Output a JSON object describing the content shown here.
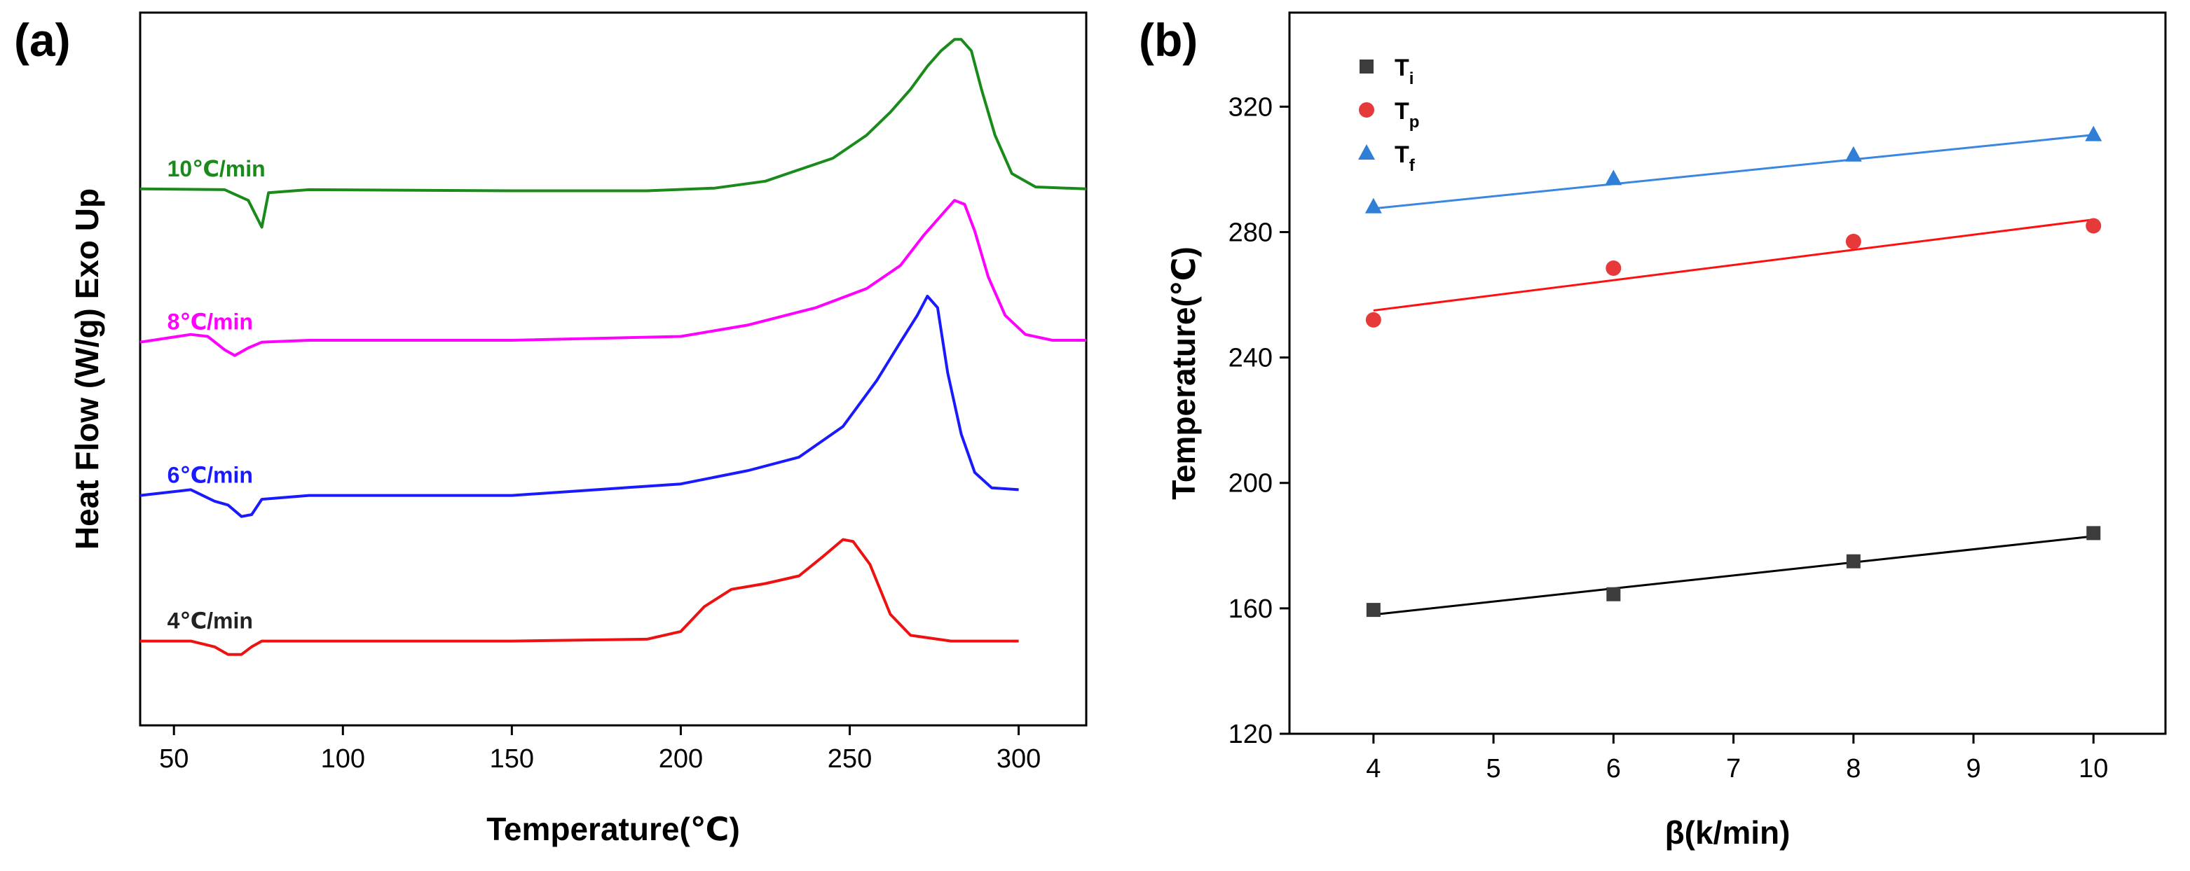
{
  "chart_data": [
    {
      "panel": "(a)",
      "type": "line",
      "xlabel": "Temperature(℃)",
      "ylabel": "Heat Flow (W/g) Exo Up",
      "xlim": [
        40,
        320
      ],
      "xticks": [
        50,
        100,
        150,
        200,
        250,
        300
      ],
      "y_ticks_shown": false,
      "y_units": "arbitrary offset",
      "series": [
        {
          "name": "10℃/min",
          "color": "#1a8a1a",
          "baseline": 9.0,
          "x": [
            40,
            65,
            72,
            74,
            76,
            78,
            90,
            150,
            190,
            210,
            225,
            235,
            245,
            255,
            262,
            268,
            273,
            277,
            281,
            283,
            286,
            289,
            293,
            298,
            305,
            320
          ],
          "y": [
            9.0,
            8.98,
            8.7,
            8.35,
            8.0,
            8.9,
            8.98,
            8.95,
            8.95,
            9.02,
            9.2,
            9.5,
            9.8,
            10.4,
            11.0,
            11.6,
            12.2,
            12.6,
            12.9,
            12.9,
            12.6,
            11.6,
            10.4,
            9.4,
            9.05,
            9.0
          ]
        },
        {
          "name": "8℃/min",
          "color": "#ff00ff",
          "baseline": 5.0,
          "x": [
            40,
            55,
            60,
            65,
            68,
            72,
            76,
            90,
            150,
            200,
            220,
            240,
            255,
            265,
            272,
            277,
            281,
            284,
            287,
            291,
            296,
            302,
            310,
            320
          ],
          "y": [
            5.0,
            5.2,
            5.15,
            4.8,
            4.65,
            4.85,
            5.0,
            5.05,
            5.05,
            5.15,
            5.45,
            5.9,
            6.4,
            7.0,
            7.8,
            8.3,
            8.7,
            8.6,
            7.9,
            6.7,
            5.7,
            5.2,
            5.05,
            5.05
          ]
        },
        {
          "name": "6℃/min",
          "color": "#1a1aff",
          "baseline": 1.0,
          "x": [
            40,
            55,
            62,
            66,
            70,
            73,
            76,
            90,
            150,
            200,
            220,
            235,
            248,
            258,
            265,
            270,
            273,
            276,
            279,
            283,
            287,
            292,
            300
          ],
          "y": [
            1.0,
            1.15,
            0.85,
            0.75,
            0.45,
            0.5,
            0.9,
            1.0,
            1.0,
            1.3,
            1.65,
            2.0,
            2.8,
            4.0,
            5.0,
            5.7,
            6.2,
            5.9,
            4.2,
            2.6,
            1.6,
            1.2,
            1.15
          ]
        },
        {
          "name": "4℃/min",
          "color": "#ee1111",
          "baseline": -2.8,
          "x": [
            40,
            55,
            62,
            66,
            70,
            73,
            76,
            90,
            150,
            190,
            200,
            207,
            215,
            225,
            235,
            242,
            248,
            251,
            256,
            262,
            268,
            280,
            300
          ],
          "y": [
            -2.8,
            -2.8,
            -2.95,
            -3.15,
            -3.15,
            -2.95,
            -2.8,
            -2.8,
            -2.8,
            -2.75,
            -2.55,
            -1.9,
            -1.45,
            -1.3,
            -1.1,
            -0.6,
            -0.15,
            -0.2,
            -0.8,
            -2.1,
            -2.65,
            -2.8,
            -2.8
          ]
        }
      ]
    },
    {
      "panel": "(b)",
      "type": "scatter",
      "xlabel": "β(k/min)",
      "ylabel": "Temperature(℃)",
      "xlim": [
        3.3,
        10.6
      ],
      "ylim": [
        120,
        350
      ],
      "xticks": [
        4,
        5,
        6,
        7,
        8,
        9,
        10
      ],
      "yticks": [
        120,
        160,
        200,
        240,
        280,
        320
      ],
      "legend_position": "top-left",
      "series": [
        {
          "name": "T",
          "sub": "i",
          "marker": "square",
          "color": "#3c3c3c",
          "line_color": "#000000",
          "x": [
            4,
            6,
            8,
            10
          ],
          "y": [
            159.5,
            164.5,
            175,
            184
          ],
          "fit": [
            158,
            183
          ]
        },
        {
          "name": "T",
          "sub": "p",
          "marker": "circle",
          "color": "#e63a3a",
          "line_color": "#ff1010",
          "x": [
            4,
            6,
            8,
            10
          ],
          "y": [
            252,
            268.5,
            277,
            282
          ],
          "fit": [
            255,
            284
          ]
        },
        {
          "name": "T",
          "sub": "f",
          "marker": "triangle",
          "color": "#2f7fd6",
          "line_color": "#3a86e0",
          "x": [
            4,
            6,
            8,
            10
          ],
          "y": [
            288,
            297,
            304.5,
            311
          ],
          "fit": [
            287.5,
            311
          ]
        }
      ]
    }
  ]
}
